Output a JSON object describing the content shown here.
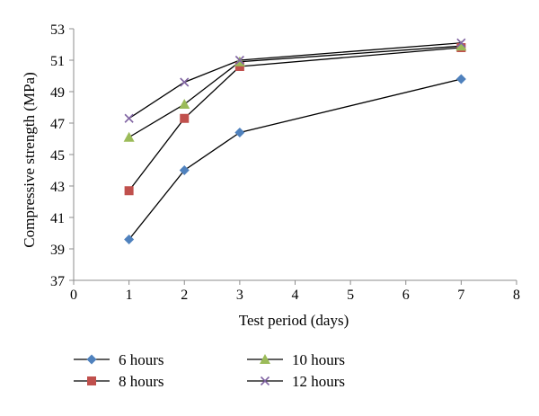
{
  "chart_data": {
    "type": "line",
    "xlabel": "Test period (days)",
    "ylabel": "Compressive strength (MPa)",
    "xlim": [
      0,
      8
    ],
    "ylim": [
      37,
      53
    ],
    "xticks": [
      0,
      1,
      2,
      3,
      4,
      5,
      6,
      7,
      8
    ],
    "yticks": [
      37,
      39,
      41,
      43,
      45,
      47,
      49,
      51,
      53
    ],
    "grid": false,
    "legend_position": "bottom",
    "series": [
      {
        "name": "6 hours",
        "color": "#4f81bd",
        "marker": "diamond",
        "x": [
          1,
          2,
          3,
          7
        ],
        "y": [
          39.6,
          44.0,
          46.4,
          49.8
        ]
      },
      {
        "name": "8 hours",
        "color": "#c0504d",
        "marker": "square",
        "x": [
          1,
          2,
          3,
          7
        ],
        "y": [
          42.7,
          47.3,
          50.6,
          51.8
        ]
      },
      {
        "name": "10 hours",
        "color": "#9bbb59",
        "marker": "triangle",
        "x": [
          1,
          2,
          3,
          7
        ],
        "y": [
          46.1,
          48.2,
          50.9,
          51.9
        ]
      },
      {
        "name": "12 hours",
        "color": "#8064a2",
        "marker": "x",
        "x": [
          1,
          2,
          3,
          7
        ],
        "y": [
          47.3,
          49.6,
          51.0,
          52.1
        ]
      }
    ]
  }
}
